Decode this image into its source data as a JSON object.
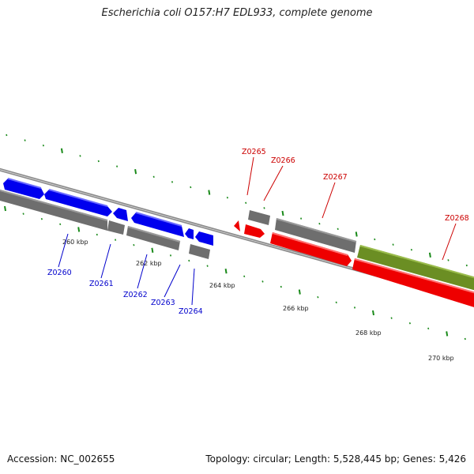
{
  "title": "Escherichia coli O157:H7 EDL933, complete genome",
  "footer": {
    "accession": "Accession: NC_002655",
    "topology": "Topology: circular; Length: 5,528,445 bp; Genes: 5,426"
  },
  "scale": {
    "unit": "kbp",
    "major_ticks_kbp": [
      260,
      262,
      264,
      266,
      268,
      270
    ],
    "tick_labels": [
      "260 kbp",
      "262 kbp",
      "264 kbp",
      "266 kbp",
      "268 kbp",
      "270 kbp"
    ]
  },
  "colors": {
    "forward_gene": "#0000ee",
    "reverse_gene": "#ee0000",
    "cds_feature": "#777777",
    "rna_feature": "#6b8e23",
    "backbone": "#8a8a8a",
    "tick": "#1a8a1a",
    "label_forward": "#0000cc",
    "label_reverse": "#cc0000"
  },
  "genes": [
    {
      "name": "Z0260",
      "strand": "forward"
    },
    {
      "name": "Z0261",
      "strand": "forward"
    },
    {
      "name": "Z0262",
      "strand": "forward"
    },
    {
      "name": "Z0263",
      "strand": "forward"
    },
    {
      "name": "Z0264",
      "strand": "forward"
    },
    {
      "name": "Z0265",
      "strand": "reverse"
    },
    {
      "name": "Z0266",
      "strand": "reverse"
    },
    {
      "name": "Z0267",
      "strand": "reverse"
    },
    {
      "name": "Z0268",
      "strand": "reverse"
    }
  ]
}
